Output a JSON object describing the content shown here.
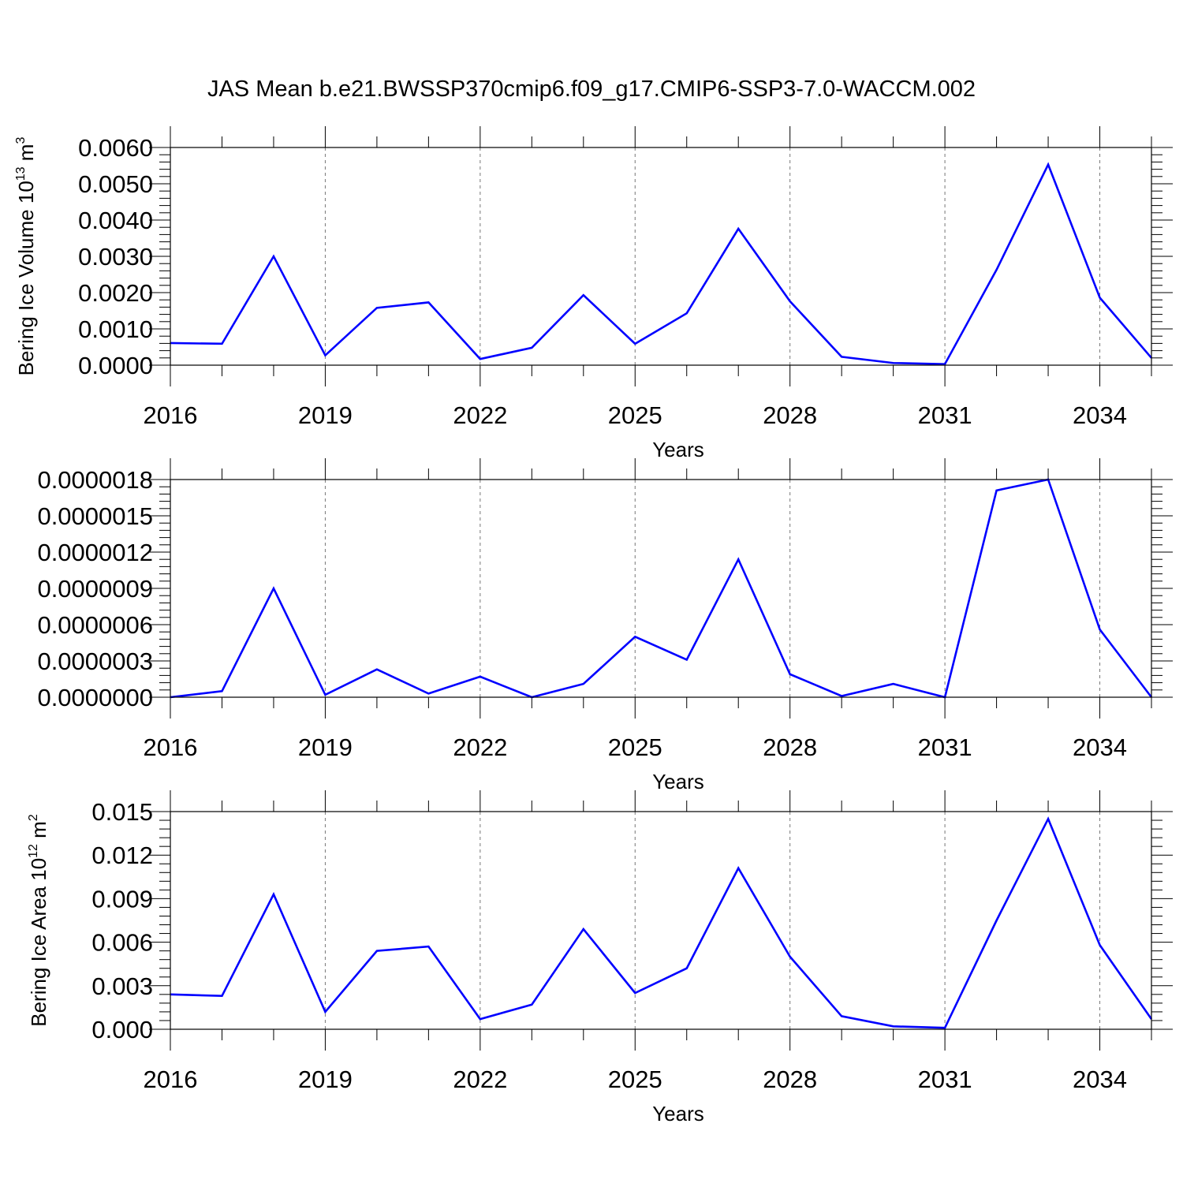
{
  "title": "JAS Mean b.e21.BWSSP370cmip6.f09_g17.CMIP6-SSP3-7.0-WACCM.002",
  "colors": {
    "line": "#0000ff",
    "grid": "#777777",
    "axis": "#000000",
    "background": "#ffffff"
  },
  "chart_data": [
    {
      "type": "line",
      "ylabel": "Bering Ice Volume 10",
      "ylabel_exp": "13",
      "ylabel_unit": " m",
      "ylabel_unit_exp": "3",
      "xlabel": "Years",
      "xlim": [
        2016,
        2035
      ],
      "ylim": [
        0,
        0.006
      ],
      "xticks": [
        2016,
        2019,
        2022,
        2025,
        2028,
        2031,
        2034
      ],
      "xtick_labels": [
        "2016",
        "2019",
        "2022",
        "2025",
        "2028",
        "2031",
        "2034"
      ],
      "yticks": [
        0,
        0.001,
        0.002,
        0.003,
        0.004,
        0.005,
        0.006
      ],
      "ytick_labels": [
        "0.0000",
        "0.0010",
        "0.0020",
        "0.0030",
        "0.0040",
        "0.0050",
        "0.0060"
      ],
      "grid": "vertical dashed at labeled years",
      "series": [
        {
          "x": [
            2016,
            2017,
            2018,
            2019,
            2020,
            2021,
            2022,
            2023,
            2024,
            2025,
            2026,
            2027,
            2028,
            2029,
            2030,
            2031,
            2032,
            2033,
            2034,
            2035
          ],
          "values": [
            0.00061,
            0.00059,
            0.003,
            0.00027,
            0.00158,
            0.00173,
            0.00017,
            0.00048,
            0.00193,
            0.00059,
            0.00143,
            0.00376,
            0.00176,
            0.00023,
            6e-05,
            3e-05,
            0.00263,
            0.00553,
            0.00186,
            0.0002
          ]
        }
      ]
    },
    {
      "type": "line",
      "ylabel": "",
      "xlabel": "Years",
      "xlim": [
        2016,
        2035
      ],
      "ylim": [
        0,
        1.8e-06
      ],
      "xticks": [
        2016,
        2019,
        2022,
        2025,
        2028,
        2031,
        2034
      ],
      "xtick_labels": [
        "2016",
        "2019",
        "2022",
        "2025",
        "2028",
        "2031",
        "2034"
      ],
      "yticks": [
        0,
        3e-07,
        6e-07,
        9e-07,
        1.2e-06,
        1.5e-06,
        1.8e-06
      ],
      "ytick_labels": [
        "0.0000000",
        "0.0000003",
        "0.0000006",
        "0.0000009",
        "0.0000012",
        "0.0000015",
        "0.0000018"
      ],
      "grid": "vertical dashed at labeled years",
      "series": [
        {
          "x": [
            2016,
            2017,
            2018,
            2019,
            2020,
            2021,
            2022,
            2023,
            2024,
            2025,
            2026,
            2027,
            2028,
            2029,
            2030,
            2031,
            2032,
            2033,
            2034,
            2035
          ],
          "values": [
            0.0,
            5e-08,
            9e-07,
            2e-08,
            2.3e-07,
            3e-08,
            1.7e-07,
            0.0,
            1.1e-07,
            5e-07,
            3.1e-07,
            1.14e-06,
            1.9e-07,
            1e-08,
            1.1e-07,
            0.0,
            1.71e-06,
            1.8e-06,
            5.6e-07,
            0.0
          ]
        }
      ]
    },
    {
      "type": "line",
      "ylabel": "Bering Ice Area 10",
      "ylabel_exp": "12",
      "ylabel_unit": " m",
      "ylabel_unit_exp": "2",
      "xlabel": "Years",
      "xlim": [
        2016,
        2035
      ],
      "ylim": [
        0,
        0.015
      ],
      "xticks": [
        2016,
        2019,
        2022,
        2025,
        2028,
        2031,
        2034
      ],
      "xtick_labels": [
        "2016",
        "2019",
        "2022",
        "2025",
        "2028",
        "2031",
        "2034"
      ],
      "yticks": [
        0,
        0.003,
        0.006,
        0.009,
        0.012,
        0.015
      ],
      "ytick_labels": [
        "0.000",
        "0.003",
        "0.006",
        "0.009",
        "0.012",
        "0.015"
      ],
      "grid": "vertical dashed at labeled years",
      "series": [
        {
          "x": [
            2016,
            2017,
            2018,
            2019,
            2020,
            2021,
            2022,
            2023,
            2024,
            2025,
            2026,
            2027,
            2028,
            2029,
            2030,
            2031,
            2032,
            2033,
            2034,
            2035
          ],
          "values": [
            0.0024,
            0.0023,
            0.0093,
            0.0012,
            0.0054,
            0.0057,
            0.0007,
            0.0017,
            0.0069,
            0.0025,
            0.0042,
            0.0111,
            0.005,
            0.0009,
            0.0002,
            0.0001,
            0.0075,
            0.0145,
            0.0058,
            0.0007
          ]
        }
      ]
    }
  ]
}
